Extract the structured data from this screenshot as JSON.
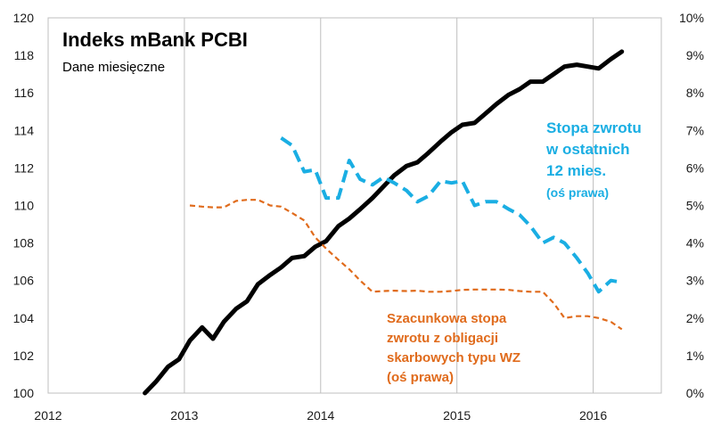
{
  "chart_data": {
    "type": "line",
    "title": "Indeks mBank PCBI",
    "subtitle": "Dane miesięczne",
    "x_ticks": [
      "2012",
      "2013",
      "2014",
      "2015",
      "2016"
    ],
    "xlim": [
      2012.0,
      2016.5
    ],
    "y_left_ticks": [
      "100",
      "102",
      "104",
      "106",
      "108",
      "110",
      "112",
      "114",
      "116",
      "118",
      "120"
    ],
    "y_left_lim": [
      100,
      120
    ],
    "y_right_ticks": [
      "0%",
      "1%",
      "2%",
      "3%",
      "4%",
      "5%",
      "6%",
      "7%",
      "8%",
      "9%",
      "10%"
    ],
    "y_right_lim": [
      0,
      10
    ],
    "grid": "vertical",
    "colors": {
      "index": "#000000",
      "return": "#1aaee3",
      "bonds": "#e06b1c",
      "grid": "#bfbfbf"
    },
    "series": [
      {
        "axis": "left",
        "values": [
          [
            2012.71,
            100.0
          ],
          [
            2012.79,
            100.6
          ],
          [
            2012.88,
            101.4
          ],
          [
            2012.96,
            101.8
          ],
          [
            2013.04,
            102.8
          ],
          [
            2013.13,
            103.5
          ],
          [
            2013.21,
            102.9
          ],
          [
            2013.29,
            103.8
          ],
          [
            2013.38,
            104.5
          ],
          [
            2013.46,
            104.9
          ],
          [
            2013.54,
            105.8
          ],
          [
            2013.63,
            106.3
          ],
          [
            2013.71,
            106.7
          ],
          [
            2013.79,
            107.2
          ],
          [
            2013.88,
            107.3
          ],
          [
            2013.96,
            107.8
          ],
          [
            2014.04,
            108.1
          ],
          [
            2014.13,
            108.9
          ],
          [
            2014.21,
            109.3
          ],
          [
            2014.29,
            109.8
          ],
          [
            2014.38,
            110.4
          ],
          [
            2014.46,
            111.0
          ],
          [
            2014.54,
            111.6
          ],
          [
            2014.63,
            112.1
          ],
          [
            2014.71,
            112.3
          ],
          [
            2014.79,
            112.8
          ],
          [
            2014.88,
            113.4
          ],
          [
            2014.96,
            113.9
          ],
          [
            2015.04,
            114.3
          ],
          [
            2015.13,
            114.4
          ],
          [
            2015.21,
            114.9
          ],
          [
            2015.29,
            115.4
          ],
          [
            2015.38,
            115.9
          ],
          [
            2015.46,
            116.2
          ],
          [
            2015.54,
            116.6
          ],
          [
            2015.63,
            116.6
          ],
          [
            2015.71,
            117.0
          ],
          [
            2015.79,
            117.4
          ],
          [
            2015.88,
            117.5
          ],
          [
            2015.96,
            117.4
          ],
          [
            2016.04,
            117.3
          ],
          [
            2016.13,
            117.8
          ],
          [
            2016.21,
            118.2
          ]
        ]
      },
      {
        "axis": "right",
        "values": [
          [
            2013.71,
            6.8
          ],
          [
            2013.79,
            6.6
          ],
          [
            2013.88,
            5.9
          ],
          [
            2013.96,
            5.95
          ],
          [
            2014.04,
            5.2
          ],
          [
            2014.13,
            5.2
          ],
          [
            2014.21,
            6.2
          ],
          [
            2014.29,
            5.7
          ],
          [
            2014.38,
            5.55
          ],
          [
            2014.46,
            5.75
          ],
          [
            2014.54,
            5.6
          ],
          [
            2014.63,
            5.4
          ],
          [
            2014.71,
            5.1
          ],
          [
            2014.79,
            5.25
          ],
          [
            2014.88,
            5.65
          ],
          [
            2014.96,
            5.6
          ],
          [
            2015.04,
            5.65
          ],
          [
            2015.13,
            5.0
          ],
          [
            2015.21,
            5.1
          ],
          [
            2015.29,
            5.1
          ],
          [
            2015.38,
            4.9
          ],
          [
            2015.46,
            4.75
          ],
          [
            2015.54,
            4.45
          ],
          [
            2015.63,
            4.0
          ],
          [
            2015.71,
            4.15
          ],
          [
            2015.79,
            4.0
          ],
          [
            2015.88,
            3.6
          ],
          [
            2015.96,
            3.2
          ],
          [
            2016.04,
            2.7
          ],
          [
            2016.13,
            3.0
          ],
          [
            2016.21,
            2.95
          ]
        ]
      },
      {
        "axis": "right",
        "values": [
          [
            2013.04,
            5.0
          ],
          [
            2013.13,
            4.97
          ],
          [
            2013.21,
            4.95
          ],
          [
            2013.29,
            4.95
          ],
          [
            2013.38,
            5.12
          ],
          [
            2013.46,
            5.15
          ],
          [
            2013.54,
            5.15
          ],
          [
            2013.63,
            5.0
          ],
          [
            2013.71,
            4.97
          ],
          [
            2013.79,
            4.8
          ],
          [
            2013.88,
            4.6
          ],
          [
            2013.96,
            4.15
          ],
          [
            2014.04,
            3.85
          ],
          [
            2014.13,
            3.55
          ],
          [
            2014.21,
            3.3
          ],
          [
            2014.29,
            3.0
          ],
          [
            2014.38,
            2.7
          ],
          [
            2014.46,
            2.72
          ],
          [
            2014.54,
            2.73
          ],
          [
            2014.63,
            2.72
          ],
          [
            2014.71,
            2.73
          ],
          [
            2014.79,
            2.7
          ],
          [
            2014.88,
            2.7
          ],
          [
            2014.96,
            2.72
          ],
          [
            2015.04,
            2.75
          ],
          [
            2015.13,
            2.76
          ],
          [
            2015.21,
            2.76
          ],
          [
            2015.29,
            2.76
          ],
          [
            2015.38,
            2.75
          ],
          [
            2015.46,
            2.72
          ],
          [
            2015.54,
            2.7
          ],
          [
            2015.63,
            2.7
          ],
          [
            2015.71,
            2.4
          ],
          [
            2015.79,
            2.0
          ],
          [
            2015.88,
            2.05
          ],
          [
            2015.96,
            2.05
          ],
          [
            2016.04,
            2.0
          ],
          [
            2016.13,
            1.9
          ],
          [
            2016.21,
            1.7
          ]
        ]
      }
    ],
    "annotations": {
      "return_lines": [
        "Stopa zwrotu",
        "w ostatnich",
        "12 mies.",
        "(oś prawa)"
      ],
      "bonds_lines": [
        "Szacunkowa stopa",
        "zwrotu z obligacji",
        "skarbowych typu WZ",
        "(oś prawa)"
      ]
    }
  }
}
